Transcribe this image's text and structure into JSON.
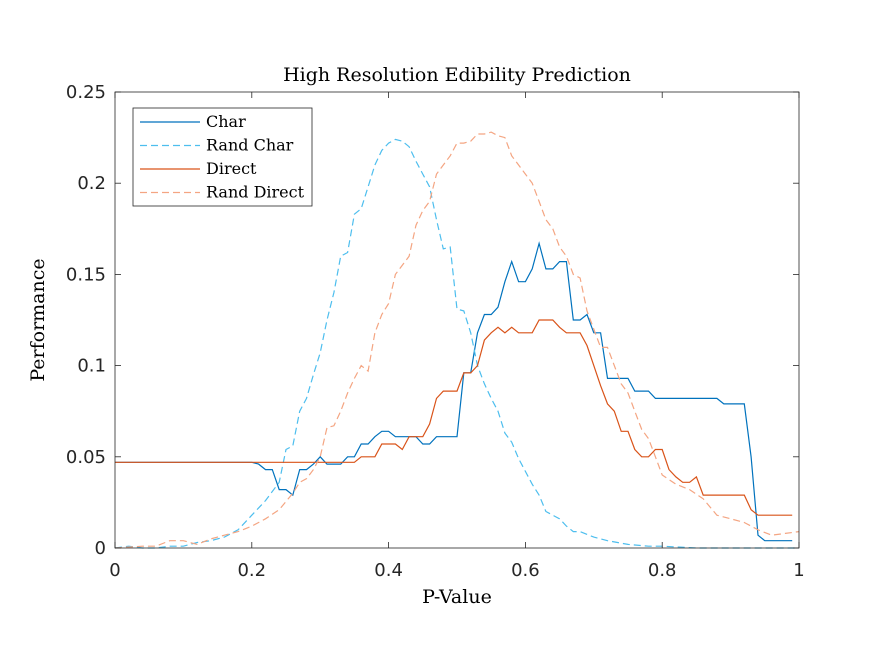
{
  "chart_data": {
    "type": "line",
    "title": "High Resolution Edibility Prediction",
    "xlabel": "P-Value",
    "ylabel": "Performance",
    "xlim": [
      0,
      1
    ],
    "ylim": [
      0,
      0.25
    ],
    "xticks": [
      0,
      0.2,
      0.4,
      0.6,
      0.8,
      1
    ],
    "xtick_labels": [
      "0",
      "0.2",
      "0.4",
      "0.6",
      "0.8",
      "1"
    ],
    "yticks": [
      0,
      0.05,
      0.1,
      0.15,
      0.2,
      0.25
    ],
    "ytick_labels": [
      "0",
      "0.05",
      "0.1",
      "0.15",
      "0.2",
      "0.25"
    ],
    "grid": false,
    "legend_position": "top-left",
    "series": [
      {
        "name": "Char",
        "color": "#0072BD",
        "dash": "solid",
        "x": [
          0,
          0.2,
          0.21,
          0.22,
          0.23,
          0.24,
          0.25,
          0.26,
          0.27,
          0.28,
          0.29,
          0.3,
          0.31,
          0.32,
          0.33,
          0.34,
          0.35,
          0.36,
          0.37,
          0.38,
          0.39,
          0.4,
          0.41,
          0.42,
          0.43,
          0.44,
          0.45,
          0.46,
          0.47,
          0.48,
          0.49,
          0.5,
          0.51,
          0.52,
          0.53,
          0.54,
          0.55,
          0.56,
          0.57,
          0.58,
          0.59,
          0.6,
          0.61,
          0.62,
          0.63,
          0.64,
          0.65,
          0.66,
          0.67,
          0.68,
          0.69,
          0.7,
          0.71,
          0.72,
          0.73,
          0.74,
          0.75,
          0.76,
          0.77,
          0.78,
          0.79,
          0.8,
          0.82,
          0.84,
          0.86,
          0.88,
          0.89,
          0.9,
          0.91,
          0.92,
          0.93,
          0.94,
          0.95,
          0.96,
          0.98,
          0.99
        ],
        "values": [
          0.047,
          0.047,
          0.046,
          0.043,
          0.043,
          0.032,
          0.032,
          0.029,
          0.043,
          0.043,
          0.046,
          0.05,
          0.046,
          0.046,
          0.046,
          0.05,
          0.05,
          0.057,
          0.057,
          0.061,
          0.064,
          0.064,
          0.061,
          0.061,
          0.061,
          0.061,
          0.057,
          0.057,
          0.061,
          0.061,
          0.061,
          0.061,
          0.096,
          0.096,
          0.118,
          0.128,
          0.128,
          0.132,
          0.146,
          0.157,
          0.146,
          0.146,
          0.153,
          0.167,
          0.153,
          0.153,
          0.157,
          0.157,
          0.125,
          0.125,
          0.128,
          0.118,
          0.118,
          0.093,
          0.093,
          0.093,
          0.093,
          0.086,
          0.086,
          0.086,
          0.082,
          0.082,
          0.082,
          0.082,
          0.082,
          0.082,
          0.079,
          0.079,
          0.079,
          0.079,
          0.05,
          0.007,
          0.004,
          0.004,
          0.004,
          0.004
        ]
      },
      {
        "name": "Rand Char",
        "color": "#4DBEEE",
        "dash": "dashed",
        "x": [
          0,
          0.02,
          0.04,
          0.06,
          0.08,
          0.1,
          0.12,
          0.14,
          0.16,
          0.18,
          0.2,
          0.22,
          0.24,
          0.25,
          0.26,
          0.27,
          0.28,
          0.29,
          0.3,
          0.31,
          0.32,
          0.33,
          0.34,
          0.35,
          0.36,
          0.37,
          0.38,
          0.39,
          0.4,
          0.41,
          0.42,
          0.43,
          0.44,
          0.45,
          0.46,
          0.47,
          0.48,
          0.49,
          0.5,
          0.51,
          0.52,
          0.53,
          0.54,
          0.55,
          0.56,
          0.57,
          0.58,
          0.59,
          0.6,
          0.61,
          0.62,
          0.63,
          0.64,
          0.65,
          0.66,
          0.67,
          0.68,
          0.7,
          0.72,
          0.75,
          0.78,
          0.8,
          0.85,
          0.9,
          0.95,
          1.0
        ],
        "values": [
          0,
          0.001,
          0,
          0,
          0.001,
          0.001,
          0.003,
          0.004,
          0.006,
          0.01,
          0.018,
          0.026,
          0.036,
          0.054,
          0.056,
          0.075,
          0.082,
          0.095,
          0.107,
          0.125,
          0.14,
          0.16,
          0.162,
          0.183,
          0.186,
          0.198,
          0.21,
          0.218,
          0.222,
          0.224,
          0.223,
          0.22,
          0.212,
          0.205,
          0.198,
          0.18,
          0.164,
          0.165,
          0.131,
          0.13,
          0.118,
          0.1,
          0.09,
          0.082,
          0.075,
          0.063,
          0.058,
          0.049,
          0.042,
          0.035,
          0.029,
          0.02,
          0.018,
          0.016,
          0.012,
          0.009,
          0.009,
          0.006,
          0.004,
          0.002,
          0.001,
          0.001,
          0,
          0,
          0,
          0
        ]
      },
      {
        "name": "Direct",
        "color": "#D95319",
        "dash": "solid",
        "x": [
          0,
          0.3,
          0.34,
          0.35,
          0.36,
          0.37,
          0.38,
          0.39,
          0.4,
          0.41,
          0.42,
          0.43,
          0.44,
          0.45,
          0.46,
          0.47,
          0.48,
          0.49,
          0.5,
          0.51,
          0.52,
          0.53,
          0.54,
          0.55,
          0.56,
          0.57,
          0.58,
          0.59,
          0.6,
          0.61,
          0.62,
          0.63,
          0.64,
          0.65,
          0.66,
          0.67,
          0.68,
          0.69,
          0.7,
          0.71,
          0.72,
          0.73,
          0.74,
          0.75,
          0.76,
          0.77,
          0.78,
          0.79,
          0.8,
          0.81,
          0.82,
          0.83,
          0.84,
          0.85,
          0.86,
          0.87,
          0.88,
          0.89,
          0.9,
          0.91,
          0.92,
          0.93,
          0.94,
          0.96,
          0.98,
          0.99
        ],
        "values": [
          0.047,
          0.047,
          0.047,
          0.047,
          0.05,
          0.05,
          0.05,
          0.057,
          0.057,
          0.057,
          0.054,
          0.061,
          0.061,
          0.061,
          0.068,
          0.082,
          0.086,
          0.086,
          0.086,
          0.096,
          0.096,
          0.1,
          0.114,
          0.118,
          0.121,
          0.118,
          0.121,
          0.118,
          0.118,
          0.118,
          0.125,
          0.125,
          0.125,
          0.121,
          0.118,
          0.118,
          0.118,
          0.111,
          0.1,
          0.089,
          0.079,
          0.075,
          0.064,
          0.064,
          0.054,
          0.05,
          0.05,
          0.054,
          0.054,
          0.043,
          0.039,
          0.036,
          0.036,
          0.039,
          0.029,
          0.029,
          0.029,
          0.029,
          0.029,
          0.029,
          0.029,
          0.021,
          0.018,
          0.018,
          0.018,
          0.018
        ]
      },
      {
        "name": "Rand Direct",
        "color": "#F4A582",
        "dash": "dashed",
        "x": [
          0,
          0.04,
          0.06,
          0.08,
          0.1,
          0.12,
          0.14,
          0.16,
          0.18,
          0.2,
          0.22,
          0.24,
          0.26,
          0.27,
          0.28,
          0.29,
          0.3,
          0.31,
          0.32,
          0.33,
          0.34,
          0.35,
          0.36,
          0.37,
          0.38,
          0.39,
          0.4,
          0.41,
          0.42,
          0.43,
          0.44,
          0.45,
          0.46,
          0.47,
          0.48,
          0.49,
          0.5,
          0.51,
          0.52,
          0.53,
          0.54,
          0.55,
          0.56,
          0.57,
          0.58,
          0.59,
          0.6,
          0.61,
          0.62,
          0.63,
          0.64,
          0.65,
          0.66,
          0.67,
          0.68,
          0.69,
          0.7,
          0.71,
          0.72,
          0.73,
          0.74,
          0.75,
          0.76,
          0.77,
          0.78,
          0.79,
          0.8,
          0.82,
          0.84,
          0.86,
          0.88,
          0.9,
          0.92,
          0.94,
          0.96,
          0.98,
          1.0
        ],
        "values": [
          0,
          0.001,
          0.001,
          0.004,
          0.004,
          0.002,
          0.005,
          0.007,
          0.009,
          0.012,
          0.016,
          0.021,
          0.03,
          0.036,
          0.038,
          0.043,
          0.05,
          0.066,
          0.067,
          0.075,
          0.085,
          0.093,
          0.1,
          0.097,
          0.118,
          0.128,
          0.134,
          0.15,
          0.155,
          0.16,
          0.177,
          0.185,
          0.19,
          0.205,
          0.21,
          0.215,
          0.222,
          0.222,
          0.223,
          0.227,
          0.227,
          0.228,
          0.226,
          0.225,
          0.215,
          0.21,
          0.205,
          0.2,
          0.19,
          0.18,
          0.175,
          0.165,
          0.16,
          0.15,
          0.148,
          0.13,
          0.12,
          0.11,
          0.11,
          0.1,
          0.09,
          0.085,
          0.075,
          0.065,
          0.06,
          0.05,
          0.04,
          0.035,
          0.032,
          0.027,
          0.018,
          0.016,
          0.014,
          0.01,
          0.007,
          0.008,
          0.009
        ]
      }
    ]
  }
}
